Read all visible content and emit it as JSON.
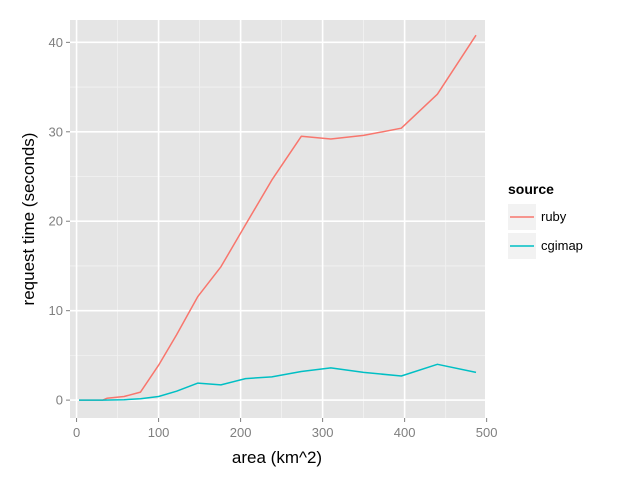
{
  "chart_data": {
    "type": "line",
    "xlabel": "area (km^2)",
    "ylabel": "request time (seconds)",
    "xlim": [
      -8,
      498
    ],
    "ylim": [
      -2,
      42.5
    ],
    "x_ticks": [
      0,
      100,
      200,
      300,
      400,
      500
    ],
    "y_ticks": [
      0,
      10,
      20,
      30,
      40
    ],
    "grid": true,
    "legend": {
      "title": "source",
      "position": "right"
    },
    "series": [
      {
        "name": "ruby",
        "color": "#f8766d",
        "x": [
          3,
          32,
          37,
          58,
          78,
          100,
          122,
          148,
          176,
          206,
          238,
          274,
          310,
          350,
          396,
          440,
          487
        ],
        "y": [
          0,
          0,
          0.2,
          0.4,
          0.9,
          3.9,
          7.3,
          11.6,
          14.9,
          19.6,
          24.6,
          29.5,
          29.2,
          29.6,
          30.4,
          34.2,
          40.8
        ]
      },
      {
        "name": "cgimap",
        "color": "#00bfc4",
        "x": [
          3,
          32,
          58,
          78,
          100,
          122,
          148,
          176,
          206,
          238,
          274,
          310,
          350,
          396,
          440,
          487
        ],
        "y": [
          0,
          0,
          0.05,
          0.15,
          0.4,
          1.0,
          1.9,
          1.7,
          2.4,
          2.6,
          3.2,
          3.6,
          3.1,
          2.7,
          4.0,
          3.1
        ]
      }
    ]
  }
}
